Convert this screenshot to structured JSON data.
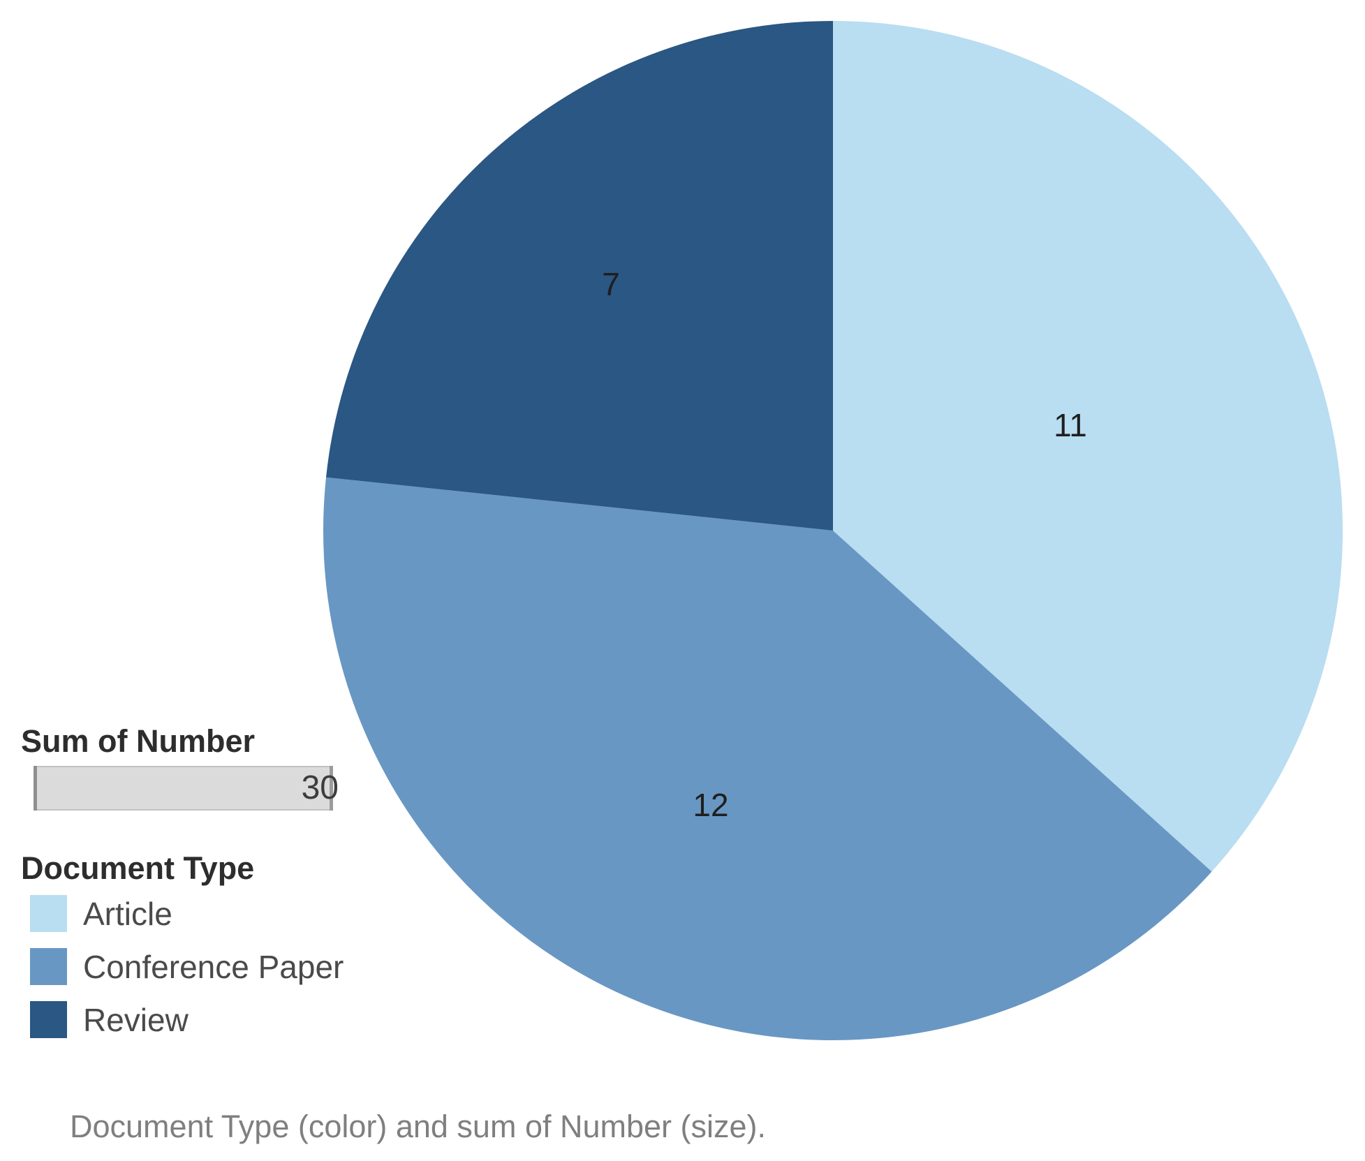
{
  "chart_data": {
    "type": "pie",
    "title": "",
    "categories": [
      "Article",
      "Conference Paper",
      "Review"
    ],
    "values": [
      11,
      12,
      7
    ],
    "series": [
      {
        "name": "Article",
        "value": 11,
        "color": "#B9DDF1"
      },
      {
        "name": "Conference Paper",
        "value": 12,
        "color": "#6897C4"
      },
      {
        "name": "Review",
        "value": 7,
        "color": "#2A5783"
      }
    ],
    "total": 30,
    "start_angle_deg": 0,
    "direction": "clockwise",
    "label_format": "value",
    "legend_position": "left"
  },
  "size_legend": {
    "title": "Sum of Number",
    "max_value": "30"
  },
  "color_legend": {
    "title": "Document Type"
  },
  "caption": "Document Type (color) and sum of Number (size)."
}
